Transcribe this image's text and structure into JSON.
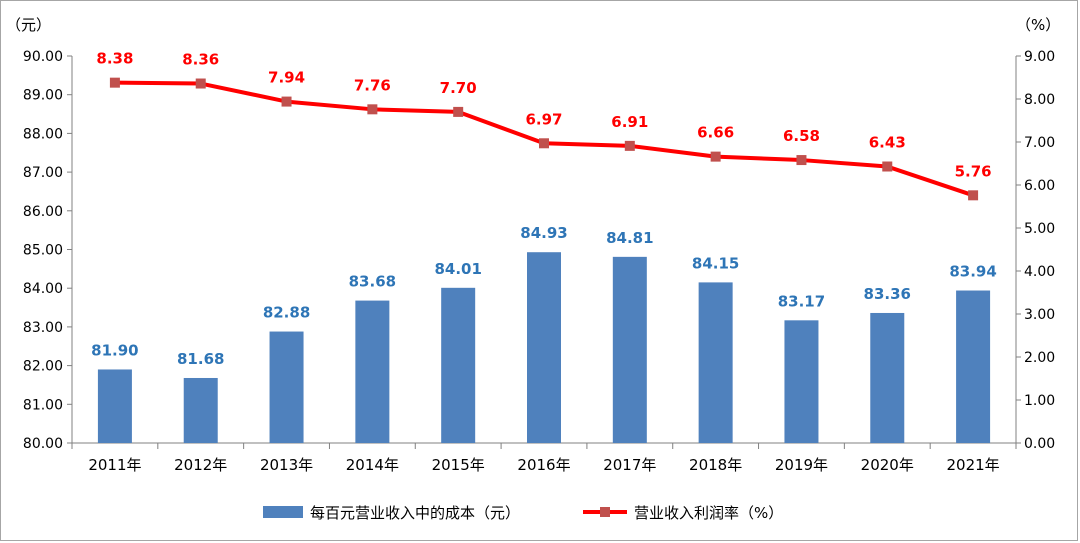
{
  "chart_data": {
    "type": "bar",
    "categories": [
      "2011年",
      "2012年",
      "2013年",
      "2014年",
      "2015年",
      "2016年",
      "2017年",
      "2018年",
      "2019年",
      "2020年",
      "2021年"
    ],
    "series": [
      {
        "name": "每百元营业收入中的成本（元）",
        "type": "bar",
        "axis": "left",
        "values": [
          81.9,
          81.68,
          82.88,
          83.68,
          84.01,
          84.93,
          84.81,
          84.15,
          83.17,
          83.36,
          83.94
        ],
        "labels": [
          "81.90",
          "81.68",
          "82.88",
          "83.68",
          "84.01",
          "84.93",
          "84.81",
          "84.15",
          "83.17",
          "83.36",
          "83.94"
        ],
        "color": "#4f81bd",
        "label_color": "#2e75b6"
      },
      {
        "name": "营业收入利润率（%）",
        "type": "line",
        "axis": "right",
        "values": [
          8.38,
          8.36,
          7.94,
          7.76,
          7.7,
          6.97,
          6.91,
          6.66,
          6.58,
          6.43,
          5.76
        ],
        "labels": [
          "8.38",
          "8.36",
          "7.94",
          "7.76",
          "7.70",
          "6.97",
          "6.91",
          "6.66",
          "6.58",
          "6.43",
          "5.76"
        ],
        "color": "#ff0000",
        "marker_color": "#c0504d"
      }
    ],
    "left_axis": {
      "unit": "（元）",
      "ylim": [
        80,
        90
      ],
      "ticks": [
        "80.00",
        "81.00",
        "82.00",
        "83.00",
        "84.00",
        "85.00",
        "86.00",
        "87.00",
        "88.00",
        "89.00",
        "90.00"
      ]
    },
    "right_axis": {
      "unit": "（%）",
      "ylim": [
        0,
        9
      ],
      "ticks": [
        "0.00",
        "1.00",
        "2.00",
        "3.00",
        "4.00",
        "5.00",
        "6.00",
        "7.00",
        "8.00",
        "9.00"
      ]
    },
    "grid": false,
    "legend": "bottom"
  }
}
